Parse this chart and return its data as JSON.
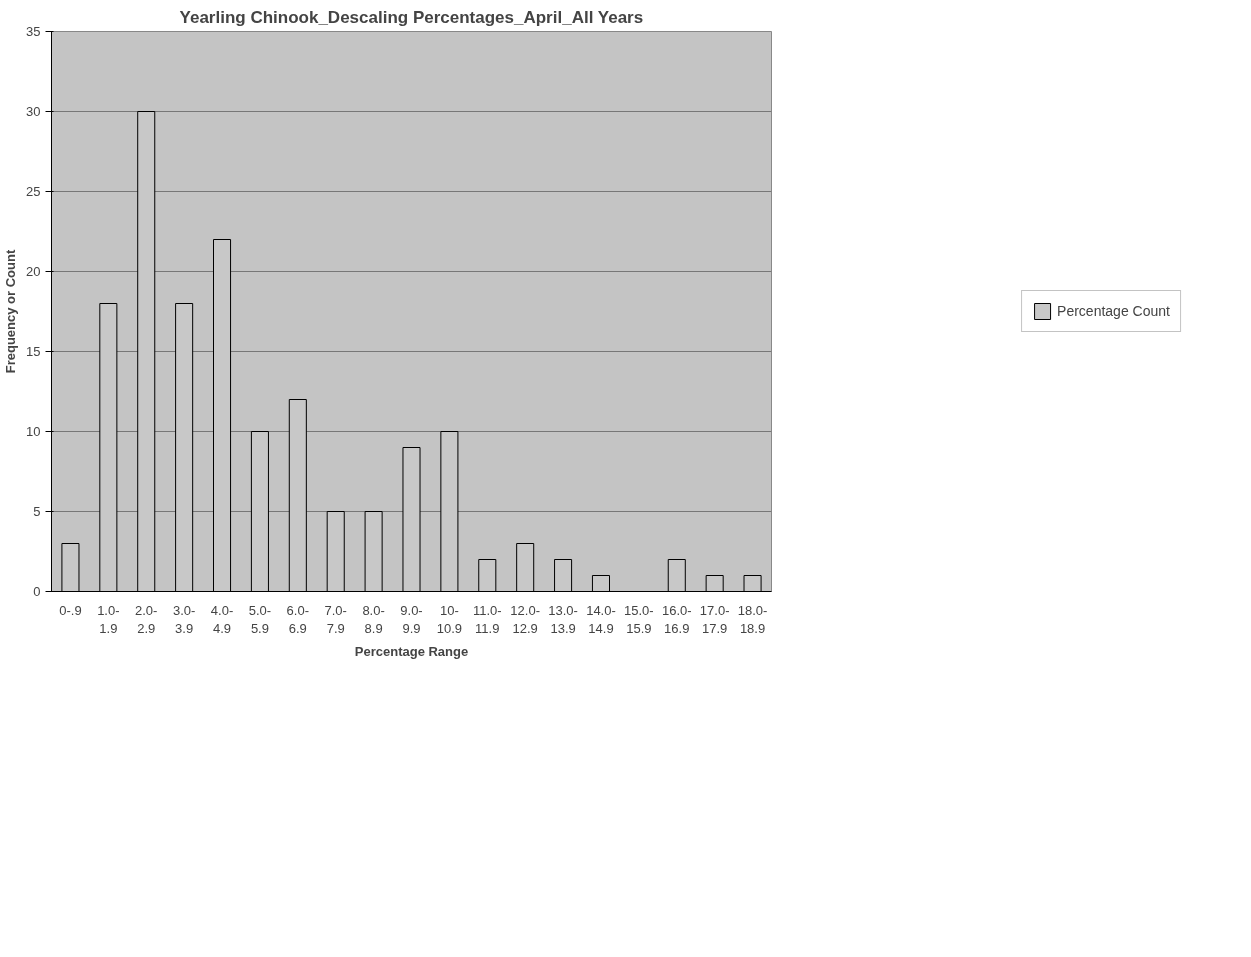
{
  "chart_data": {
    "type": "bar",
    "title": "Yearling Chinook_Descaling Percentages_April_All Years",
    "xlabel": "Percentage Range",
    "ylabel": "Frequency or Count",
    "categories": [
      "0-.9",
      "1.0-\n1.9",
      "2.0-\n2.9",
      "3.0-\n3.9",
      "4.0-\n4.9",
      "5.0-\n5.9",
      "6.0-\n6.9",
      "7.0-\n7.9",
      "8.0-\n8.9",
      "9.0-\n9.9",
      "10-\n10.9",
      "11.0-\n11.9",
      "12.0-\n12.9",
      "13.0-\n13.9",
      "14.0-\n14.9",
      "15.0-\n15.9",
      "16.0-\n16.9",
      "17.0-\n17.9",
      "18.0-\n18.9"
    ],
    "series": [
      {
        "name": "Percentage Count",
        "color": "#c8c8c8",
        "values": [
          3,
          18,
          30,
          18,
          22,
          10,
          12,
          5,
          5,
          9,
          10,
          2,
          3,
          2,
          1,
          0,
          2,
          1,
          1
        ]
      }
    ],
    "ylim": [
      0,
      35
    ],
    "yticks": [
      0,
      5,
      10,
      15,
      20,
      25,
      30,
      35
    ],
    "grid": "y",
    "legend": "right"
  }
}
